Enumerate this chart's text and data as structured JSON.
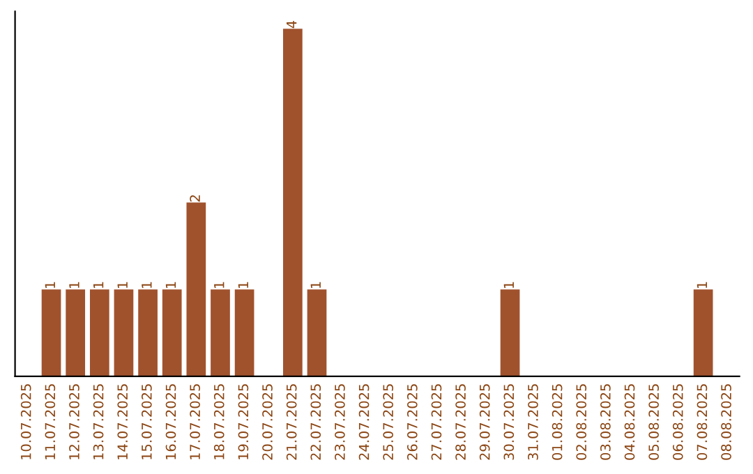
{
  "chart_data": {
    "type": "bar",
    "categories": [
      "10.07.2025",
      "11.07.2025",
      "12.07.2025",
      "13.07.2025",
      "14.07.2025",
      "15.07.2025",
      "16.07.2025",
      "17.07.2025",
      "18.07.2025",
      "19.07.2025",
      "20.07.2025",
      "21.07.2025",
      "22.07.2025",
      "23.07.2025",
      "24.07.2025",
      "25.07.2025",
      "26.07.2025",
      "27.07.2025",
      "28.07.2025",
      "29.07.2025",
      "30.07.2025",
      "31.07.2025",
      "01.08.2025",
      "02.08.2025",
      "03.08.2025",
      "04.08.2025",
      "05.08.2025",
      "06.08.2025",
      "07.08.2025",
      "08.08.2025"
    ],
    "values": [
      0,
      1,
      1,
      1,
      1,
      1,
      1,
      2,
      1,
      1,
      0,
      4,
      1,
      0,
      0,
      0,
      0,
      0,
      0,
      0,
      1,
      0,
      0,
      0,
      0,
      0,
      0,
      0,
      1,
      0
    ],
    "value_labels": [
      null,
      "1",
      "1",
      "1",
      "1",
      "1",
      "1",
      "2",
      "1",
      "1",
      null,
      "4",
      "1",
      null,
      null,
      null,
      null,
      null,
      null,
      null,
      "1",
      null,
      null,
      null,
      null,
      null,
      null,
      null,
      "1",
      null
    ],
    "color": "#a0522d",
    "ylim": [
      0,
      4.2
    ],
    "tick_labels": "x",
    "grid": false,
    "legend": false
  }
}
